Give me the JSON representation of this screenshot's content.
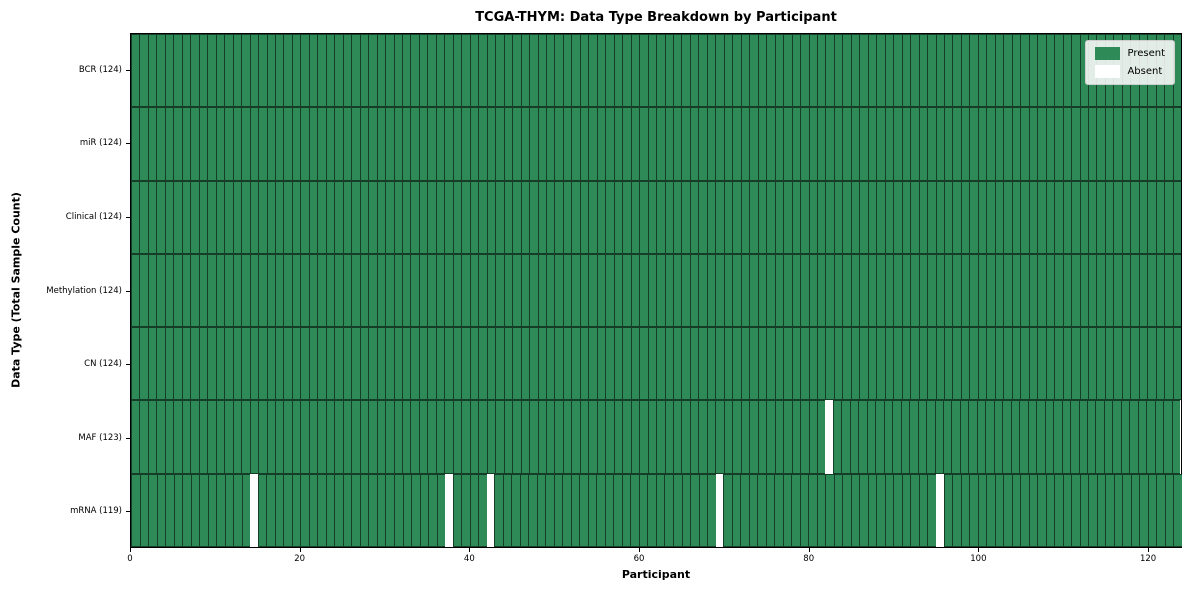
{
  "chart_data": {
    "type": "heatmap",
    "title": "TCGA-THYM: Data Type Breakdown by Participant",
    "xlabel": "Participant",
    "ylabel": "Data Type (Total Sample Count)",
    "n_participants": 124,
    "xlim": [
      0,
      124
    ],
    "xticks": [
      0,
      20,
      40,
      60,
      80,
      100,
      120
    ],
    "grid": false,
    "rows": [
      {
        "name": "BCR",
        "label": "BCR (124)",
        "present_count": 124,
        "absent_participants": []
      },
      {
        "name": "miR",
        "label": "miR (124)",
        "present_count": 124,
        "absent_participants": []
      },
      {
        "name": "Clinical",
        "label": "Clinical (124)",
        "present_count": 124,
        "absent_participants": []
      },
      {
        "name": "Methylation",
        "label": "Methylation (124)",
        "present_count": 124,
        "absent_participants": []
      },
      {
        "name": "CN",
        "label": "CN (124)",
        "present_count": 124,
        "absent_participants": []
      },
      {
        "name": "MAF",
        "label": "MAF (123)",
        "present_count": 123,
        "absent_participants": [
          82
        ]
      },
      {
        "name": "mRNA",
        "label": "mRNA (119)",
        "present_count": 119,
        "absent_participants": [
          14,
          37,
          42,
          69,
          95
        ]
      }
    ],
    "legend": {
      "position": "upper right",
      "items": [
        {
          "label": "Present",
          "color": "#2e8b57"
        },
        {
          "label": "Absent",
          "color": "#ffffff"
        }
      ]
    },
    "colors": {
      "present": "#2e8b57",
      "absent": "#ffffff",
      "cell_edge": "rgba(0,0,0,0.55)"
    }
  }
}
